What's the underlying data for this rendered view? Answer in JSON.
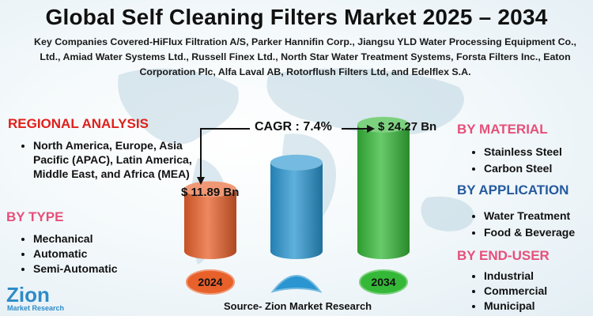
{
  "title": "Global Self Cleaning Filters Market 2025 – 2034",
  "companies": "Key Companies Covered-HiFlux Filtration A/S, Parker Hannifin Corp., Jiangsu YLD Water Processing Equipment Co., Ltd., Amiad Water Systems Ltd., Russell Finex Ltd., North Star Water Treatment Systems, Forsta Filters Inc., Eaton Corporation Plc, Alfa Laval AB, Rotorflush Filters Ltd, and Edelflex S.A.",
  "regional": {
    "heading": "REGIONAL ANALYSIS",
    "items": [
      "North America, Europe, Asia Pacific (APAC), Latin America, Middle East, and Africa (MEA)"
    ]
  },
  "by_type": {
    "heading": "BY TYPE",
    "items": [
      "Mechanical",
      "Automatic",
      "Semi-Automatic"
    ]
  },
  "by_material": {
    "heading": "BY MATERIAL",
    "items": [
      "Stainless Steel",
      "Carbon Steel"
    ]
  },
  "by_application": {
    "heading": "BY APPLICATION",
    "items": [
      "Water Treatment",
      "Food & Beverage"
    ]
  },
  "by_end_user": {
    "heading": "BY END-USER",
    "items": [
      "Industrial",
      "Commercial",
      "Municipal"
    ]
  },
  "source": "Source- Zion Market Research",
  "logo": {
    "name": "Zion",
    "sub": "Market Research"
  },
  "chart_data": {
    "type": "bar",
    "categories": [
      "2024",
      "",
      "2034"
    ],
    "values": [
      11.89,
      17.0,
      24.27
    ],
    "value_labels": [
      "$ 11.89 Bn",
      "",
      "$ 24.27 Bn"
    ],
    "cagr_label": "CAGR : 7.4%",
    "colors": [
      "#e8602a",
      "#2a95d0",
      "#35b838"
    ],
    "unit": "USD Billion"
  }
}
